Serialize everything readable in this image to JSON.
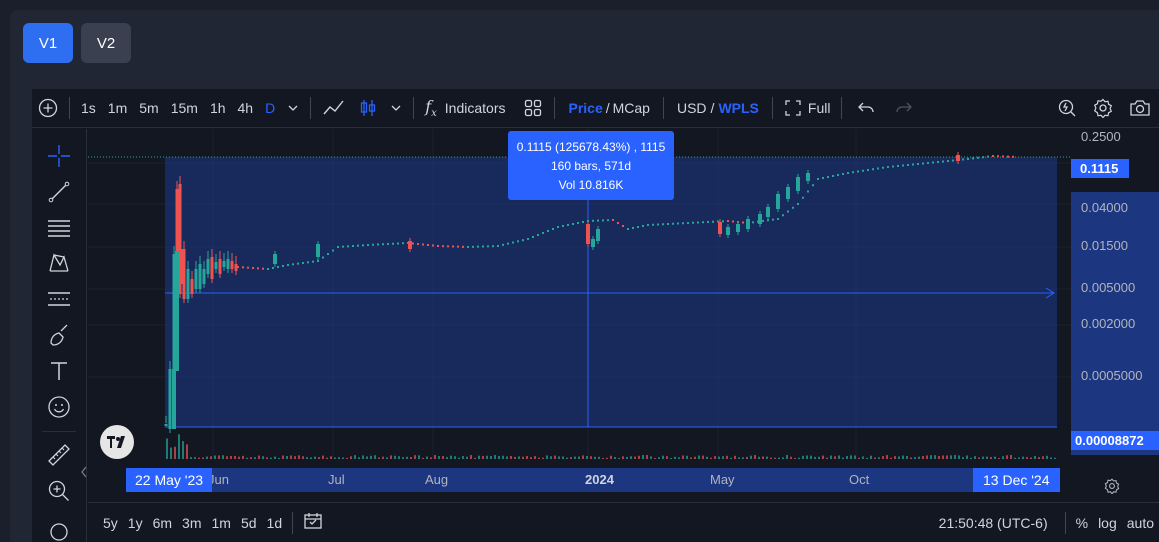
{
  "versions": [
    "V1",
    "V2"
  ],
  "toolbar": {
    "intervals": [
      "1s",
      "1m",
      "5m",
      "15m",
      "1h",
      "4h",
      "D"
    ],
    "selected_interval": "D",
    "indicators_label": "Indicators",
    "price_label": "Price",
    "mcap_label": "MCap",
    "usd_label": "USD",
    "wpls_label": "WPLS",
    "full_label": "Full",
    "slash": "/"
  },
  "tooltip": {
    "line1": "0.1115 (125678.43%) , 1115",
    "line2": "160 bars, 571d",
    "line3": "Vol 10.816K"
  },
  "y_axis": {
    "ticks": [
      "0.2500",
      "0.04000",
      "0.01500",
      "0.005000",
      "0.002000",
      "0.0005000"
    ],
    "current_price": "0.1115",
    "low_price": "0.00008872"
  },
  "x_axis": {
    "ticks": [
      "Jun",
      "Jul",
      "Aug",
      "2024",
      "May",
      "Oct"
    ],
    "start_label": "22 May '23",
    "end_label": "13 Dec '24"
  },
  "bottom": {
    "ranges": [
      "5y",
      "1y",
      "6m",
      "3m",
      "1m",
      "5d",
      "1d"
    ],
    "time": "21:50:48 (UTC-6)",
    "percent": "%",
    "log": "log",
    "auto": "auto"
  },
  "colors": {
    "up": "#26a69a",
    "down": "#ef5350",
    "accent": "#2962ff",
    "range_fill": "#1e3a8a"
  }
}
